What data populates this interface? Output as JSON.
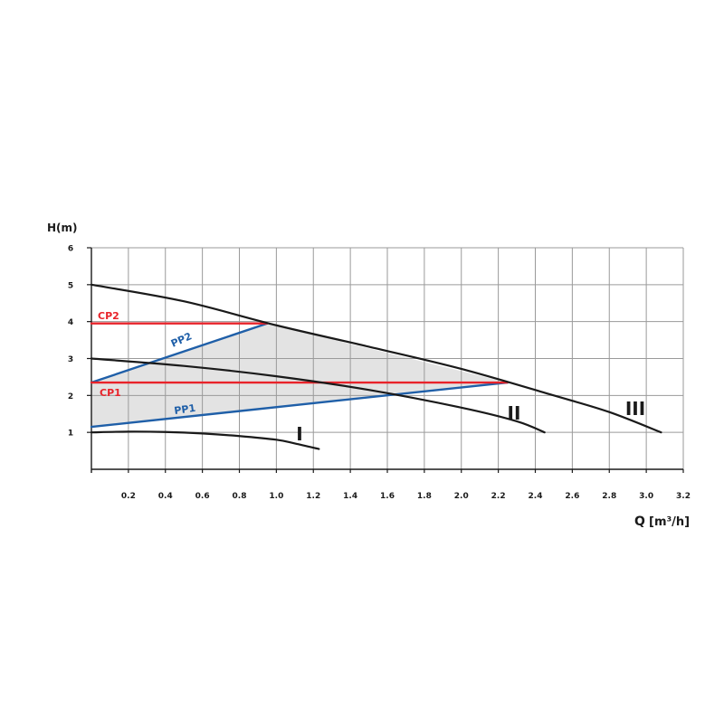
{
  "chart_data": {
    "type": "line",
    "ylabel": "H(m)",
    "xlabel_prefix": "Q",
    "xlabel_unit": "[m³/h]",
    "xlim": [
      0,
      3.2
    ],
    "ylim": [
      0,
      6
    ],
    "x_ticks": [
      0.2,
      0.4,
      0.6,
      0.8,
      1.0,
      1.2,
      1.4,
      1.6,
      1.8,
      2.0,
      2.2,
      2.4,
      2.6,
      2.8,
      3.0,
      3.2
    ],
    "y_ticks": [
      1,
      2,
      3,
      4,
      5,
      6
    ],
    "grid": true,
    "colors": {
      "curve": "#1a1a1a",
      "constant_pressure": "#e8232a",
      "proportional_pressure": "#1f5fa8",
      "area_fill": "#e3e3e3",
      "grid": "#9a9a9a"
    },
    "shaded_area": [
      [
        0,
        1.15
      ],
      [
        0,
        2.35
      ],
      [
        0.95,
        3.95
      ],
      [
        2.25,
        2.35
      ]
    ],
    "series": [
      {
        "name": "I",
        "kind": "curve",
        "points": [
          [
            0,
            1.0
          ],
          [
            0.2,
            1.02
          ],
          [
            0.4,
            1.01
          ],
          [
            0.6,
            0.97
          ],
          [
            0.8,
            0.9
          ],
          [
            1.0,
            0.8
          ],
          [
            1.1,
            0.7
          ],
          [
            1.23,
            0.55
          ]
        ]
      },
      {
        "name": "II",
        "kind": "curve",
        "points": [
          [
            0,
            3.0
          ],
          [
            0.5,
            2.8
          ],
          [
            1.0,
            2.52
          ],
          [
            1.5,
            2.15
          ],
          [
            2.0,
            1.67
          ],
          [
            2.3,
            1.3
          ],
          [
            2.45,
            1.0
          ]
        ]
      },
      {
        "name": "III",
        "kind": "curve",
        "points": [
          [
            0,
            5.0
          ],
          [
            0.5,
            4.55
          ],
          [
            1.0,
            3.9
          ],
          [
            1.5,
            3.32
          ],
          [
            2.0,
            2.72
          ],
          [
            2.5,
            2.0
          ],
          [
            2.8,
            1.55
          ],
          [
            3.08,
            1.0
          ]
        ]
      },
      {
        "name": "CP2",
        "kind": "constant_pressure",
        "points": [
          [
            0,
            3.95
          ],
          [
            0.95,
            3.95
          ]
        ]
      },
      {
        "name": "CP1",
        "kind": "constant_pressure",
        "points": [
          [
            0,
            2.35
          ],
          [
            2.25,
            2.35
          ]
        ]
      },
      {
        "name": "PP2",
        "kind": "proportional_pressure",
        "points": [
          [
            0,
            2.35
          ],
          [
            0.95,
            3.95
          ]
        ]
      },
      {
        "name": "PP1",
        "kind": "proportional_pressure",
        "points": [
          [
            0,
            1.15
          ],
          [
            2.25,
            2.35
          ]
        ]
      }
    ]
  }
}
